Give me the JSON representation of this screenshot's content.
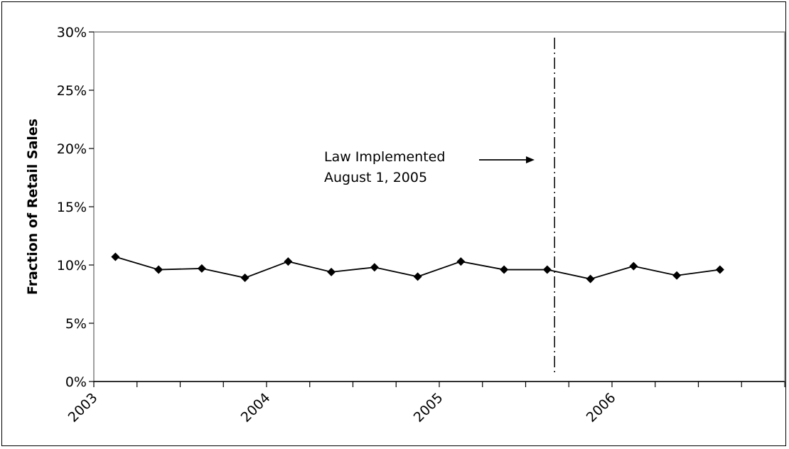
{
  "chart_data": {
    "type": "line",
    "title": "",
    "xlabel": "",
    "ylabel": "Fraction of Retail Sales",
    "x_tick_labels": [
      "2003",
      "2004",
      "2005",
      "2006"
    ],
    "y_tick_labels": [
      "0%",
      "5%",
      "10%",
      "15%",
      "20%",
      "25%",
      "30%"
    ],
    "ylim": [
      0,
      30
    ],
    "y_ticks": [
      0,
      5,
      10,
      15,
      20,
      25,
      30
    ],
    "x_quarters": 16,
    "grid": false,
    "legend": "none",
    "series": [
      {
        "values": [
          10.7,
          9.6,
          9.7,
          8.9,
          10.3,
          9.4,
          9.8,
          9.0,
          10.3,
          9.6,
          9.6,
          8.8,
          9.9,
          9.1,
          9.6
        ],
        "color": "#000000",
        "marker": "diamond"
      }
    ],
    "annotations": [
      {
        "text_lines": [
          "Law Implemented",
          "August 1, 2005"
        ],
        "event_quarter": 10.67,
        "line_style": "dash-dot"
      }
    ]
  }
}
